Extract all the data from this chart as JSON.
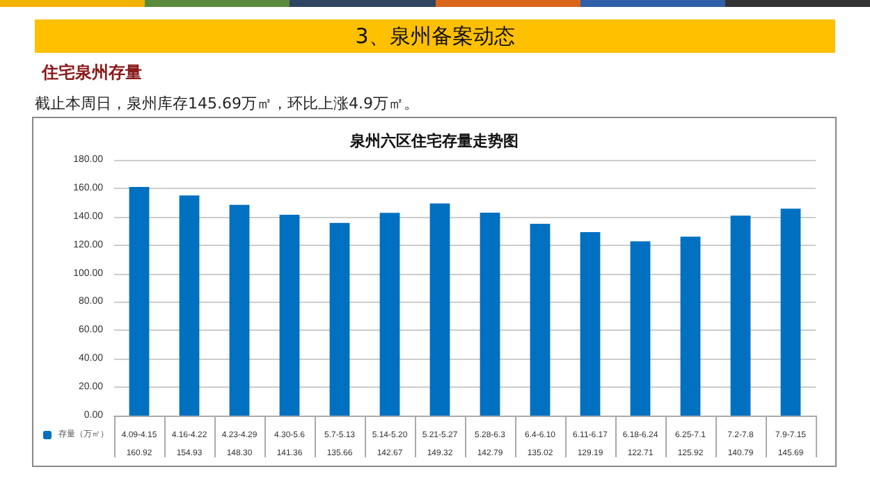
{
  "chart_data": {
    "type": "bar",
    "title": "泉州六区住宅存量走势图",
    "annotations": [
      "3、泉州备案动态",
      "住宅泉州存量",
      "截止本周日，泉州库存145.69万㎡，环比上涨4.9万㎡。"
    ],
    "categories": [
      "4.09-4.15",
      "4.16-4.22",
      "4.23-4.29",
      "4.30-5.6",
      "5.7-5.13",
      "5.14-5.20",
      "5.21-5.27",
      "5.28-6.3",
      "6.4-6.10",
      "6.11-6.17",
      "6.18-6.24",
      "6.25-7.1",
      "7.2-7.8",
      "7.9-7.15"
    ],
    "series": [
      {
        "name": "存量（万㎡）",
        "color": "#0070c0",
        "values": [
          160.92,
          154.93,
          148.3,
          141.36,
          135.66,
          142.67,
          149.32,
          142.79,
          135.02,
          129.19,
          122.71,
          125.92,
          140.79,
          145.69
        ],
        "value_labels": [
          "160.92",
          "154.93",
          "148.30",
          "141.36",
          "135.66",
          "142.67",
          "149.32",
          "142.79",
          "135.02",
          "129.19",
          "122.71",
          "125.92",
          "140.79",
          "145.69"
        ]
      }
    ],
    "ylim": [
      0,
      180
    ],
    "yticks": [
      {
        "value": 0,
        "label": "0.00"
      },
      {
        "value": 20,
        "label": "20.00"
      },
      {
        "value": 40,
        "label": "40.00"
      },
      {
        "value": 60,
        "label": "60.00"
      },
      {
        "value": 80,
        "label": "80.00"
      },
      {
        "value": 100,
        "label": "100.00"
      },
      {
        "value": 120,
        "label": "120.00"
      },
      {
        "value": 140,
        "label": "140.00"
      },
      {
        "value": 160,
        "label": "160.00"
      },
      {
        "value": 180,
        "label": "180.00"
      }
    ],
    "grid": "y",
    "legend": "bottom left"
  }
}
